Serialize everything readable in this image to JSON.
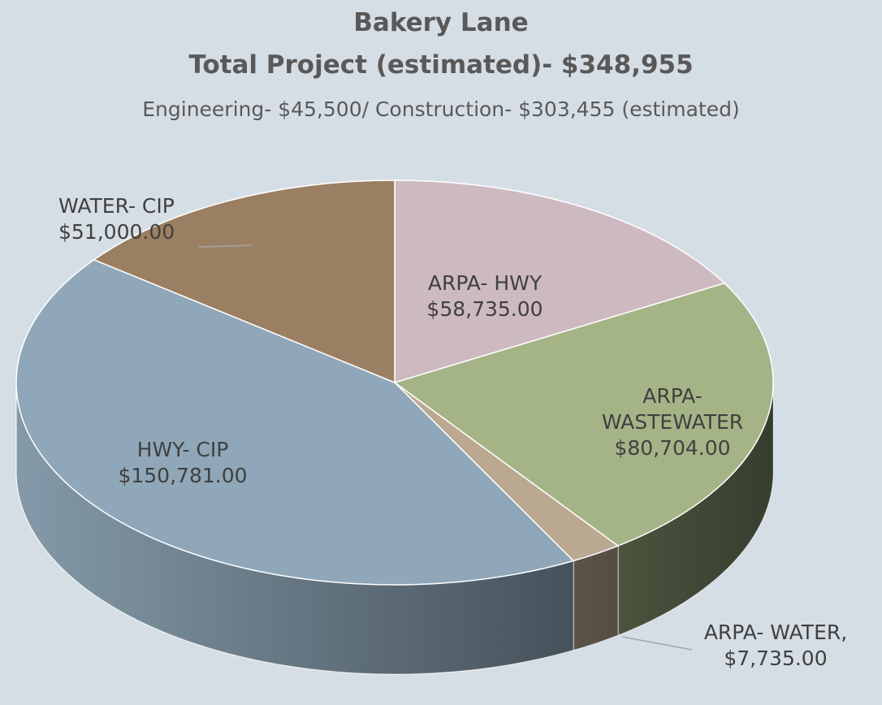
{
  "chart_data": {
    "type": "pie",
    "title": "Bakery Lane",
    "subtitle": "Total Project (estimated)- $348,955",
    "note": "Engineering- $45,500/ Construction- $303,455 (estimated)",
    "categories": [
      "ARPA- HWY",
      "ARPA- WASTEWATER",
      "ARPA- WATER,",
      "HWY- CIP",
      "WATER- CIP"
    ],
    "values": [
      58735,
      80704,
      7735,
      150781,
      51000
    ],
    "value_labels": [
      "$58,735.00",
      "$80,704.00",
      "$7,735.00",
      "$150,781.00",
      "$51,000.00"
    ],
    "colors": [
      "#cdbac1",
      "#a4b486",
      "#bba891",
      "#8fa7b8",
      "#9b7f62"
    ]
  }
}
